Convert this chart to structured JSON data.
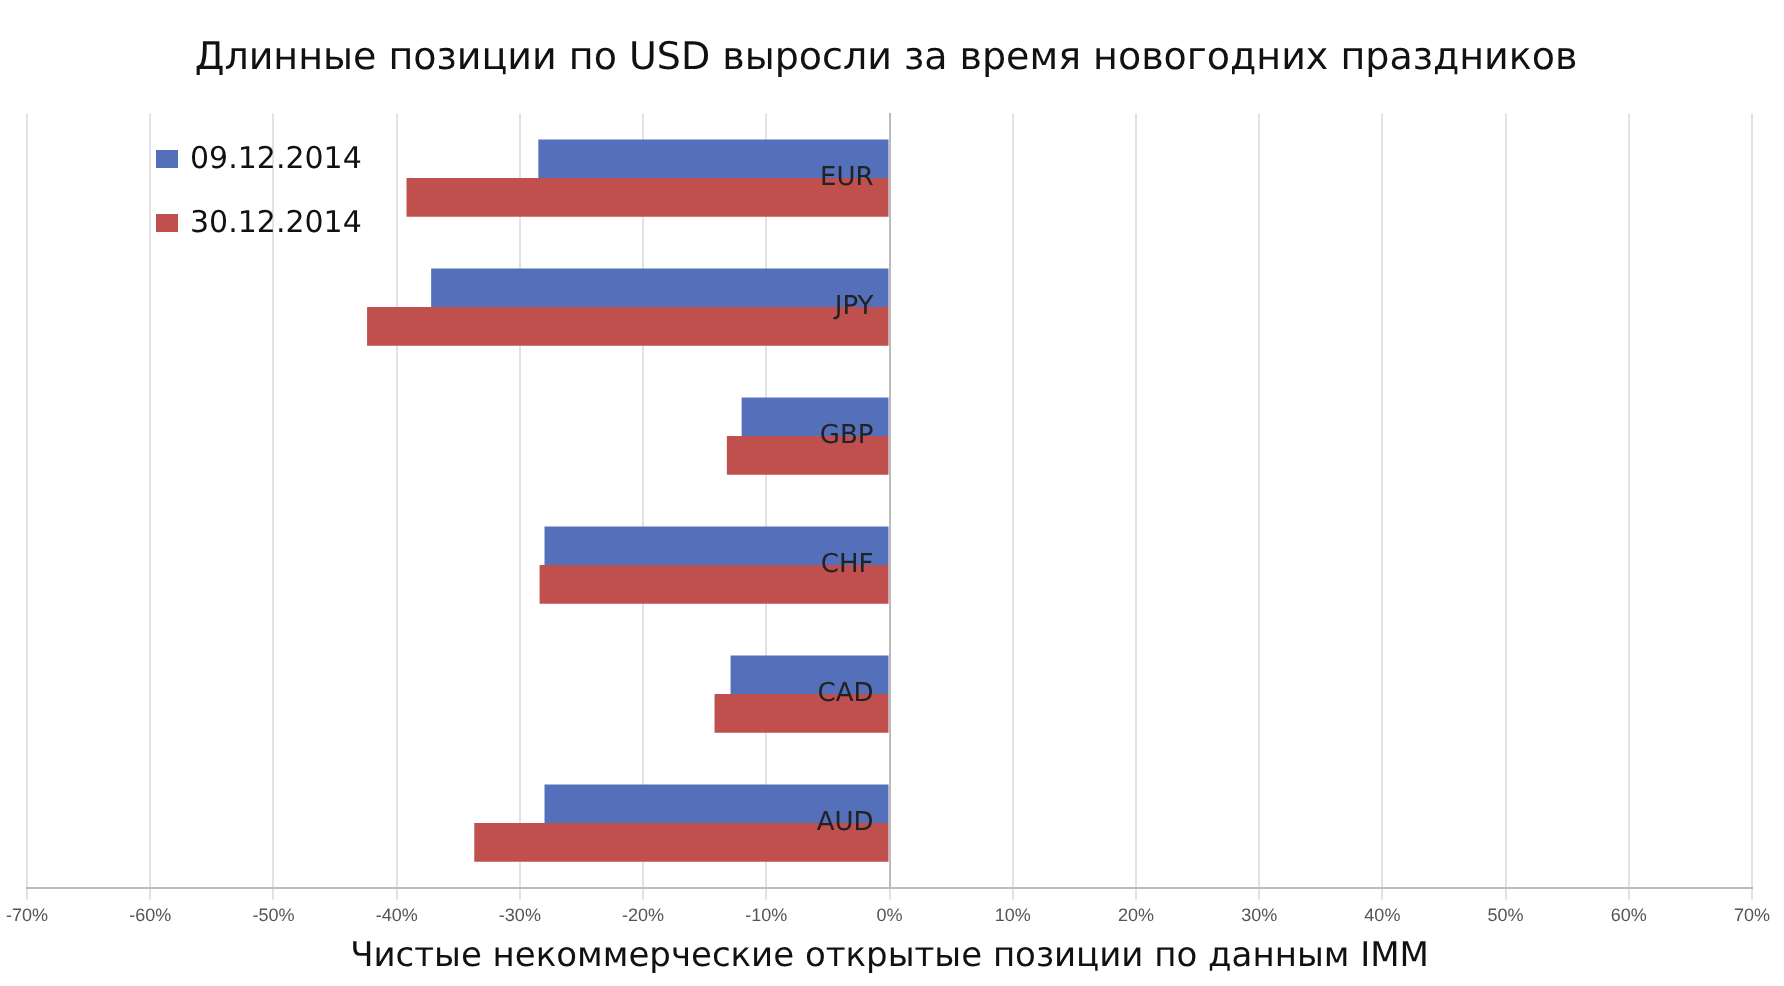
{
  "chart_data": {
    "type": "bar",
    "orientation": "horizontal",
    "title": "Длинные позиции по USD выросли за время новогодних праздников",
    "xlabel": "Чистые некоммерческие открытые позиции по данным IMM",
    "categories": [
      "EUR",
      "JPY",
      "GBP",
      "CHF",
      "CAD",
      "AUD"
    ],
    "series": [
      {
        "name": "09.12.2014",
        "color": "#5470bb",
        "values": [
          -28.5,
          -37.2,
          -12,
          -28,
          -12.9,
          -28
        ]
      },
      {
        "name": "30.12.2014",
        "color": "#c0504d",
        "values": [
          -39.2,
          -42.4,
          -13.2,
          -28.4,
          -14.2,
          -33.7
        ]
      }
    ],
    "xlim": [
      -70,
      70
    ],
    "xticks": [
      {
        "value": -70,
        "label": "-70%"
      },
      {
        "value": -60,
        "label": "-60%"
      },
      {
        "value": -50,
        "label": "-50%"
      },
      {
        "value": -40,
        "label": "-40%"
      },
      {
        "value": -30,
        "label": "-30%"
      },
      {
        "value": -20,
        "label": "-20%"
      },
      {
        "value": -10,
        "label": "-10%"
      },
      {
        "value": 0,
        "label": "0%"
      },
      {
        "value": 10,
        "label": "10%"
      },
      {
        "value": 20,
        "label": "20%"
      },
      {
        "value": 30,
        "label": "30%"
      },
      {
        "value": 40,
        "label": "40%"
      },
      {
        "value": 50,
        "label": "50%"
      },
      {
        "value": 60,
        "label": "60%"
      },
      {
        "value": 70,
        "label": "70%"
      }
    ],
    "grid": "x",
    "legend": "top left"
  }
}
